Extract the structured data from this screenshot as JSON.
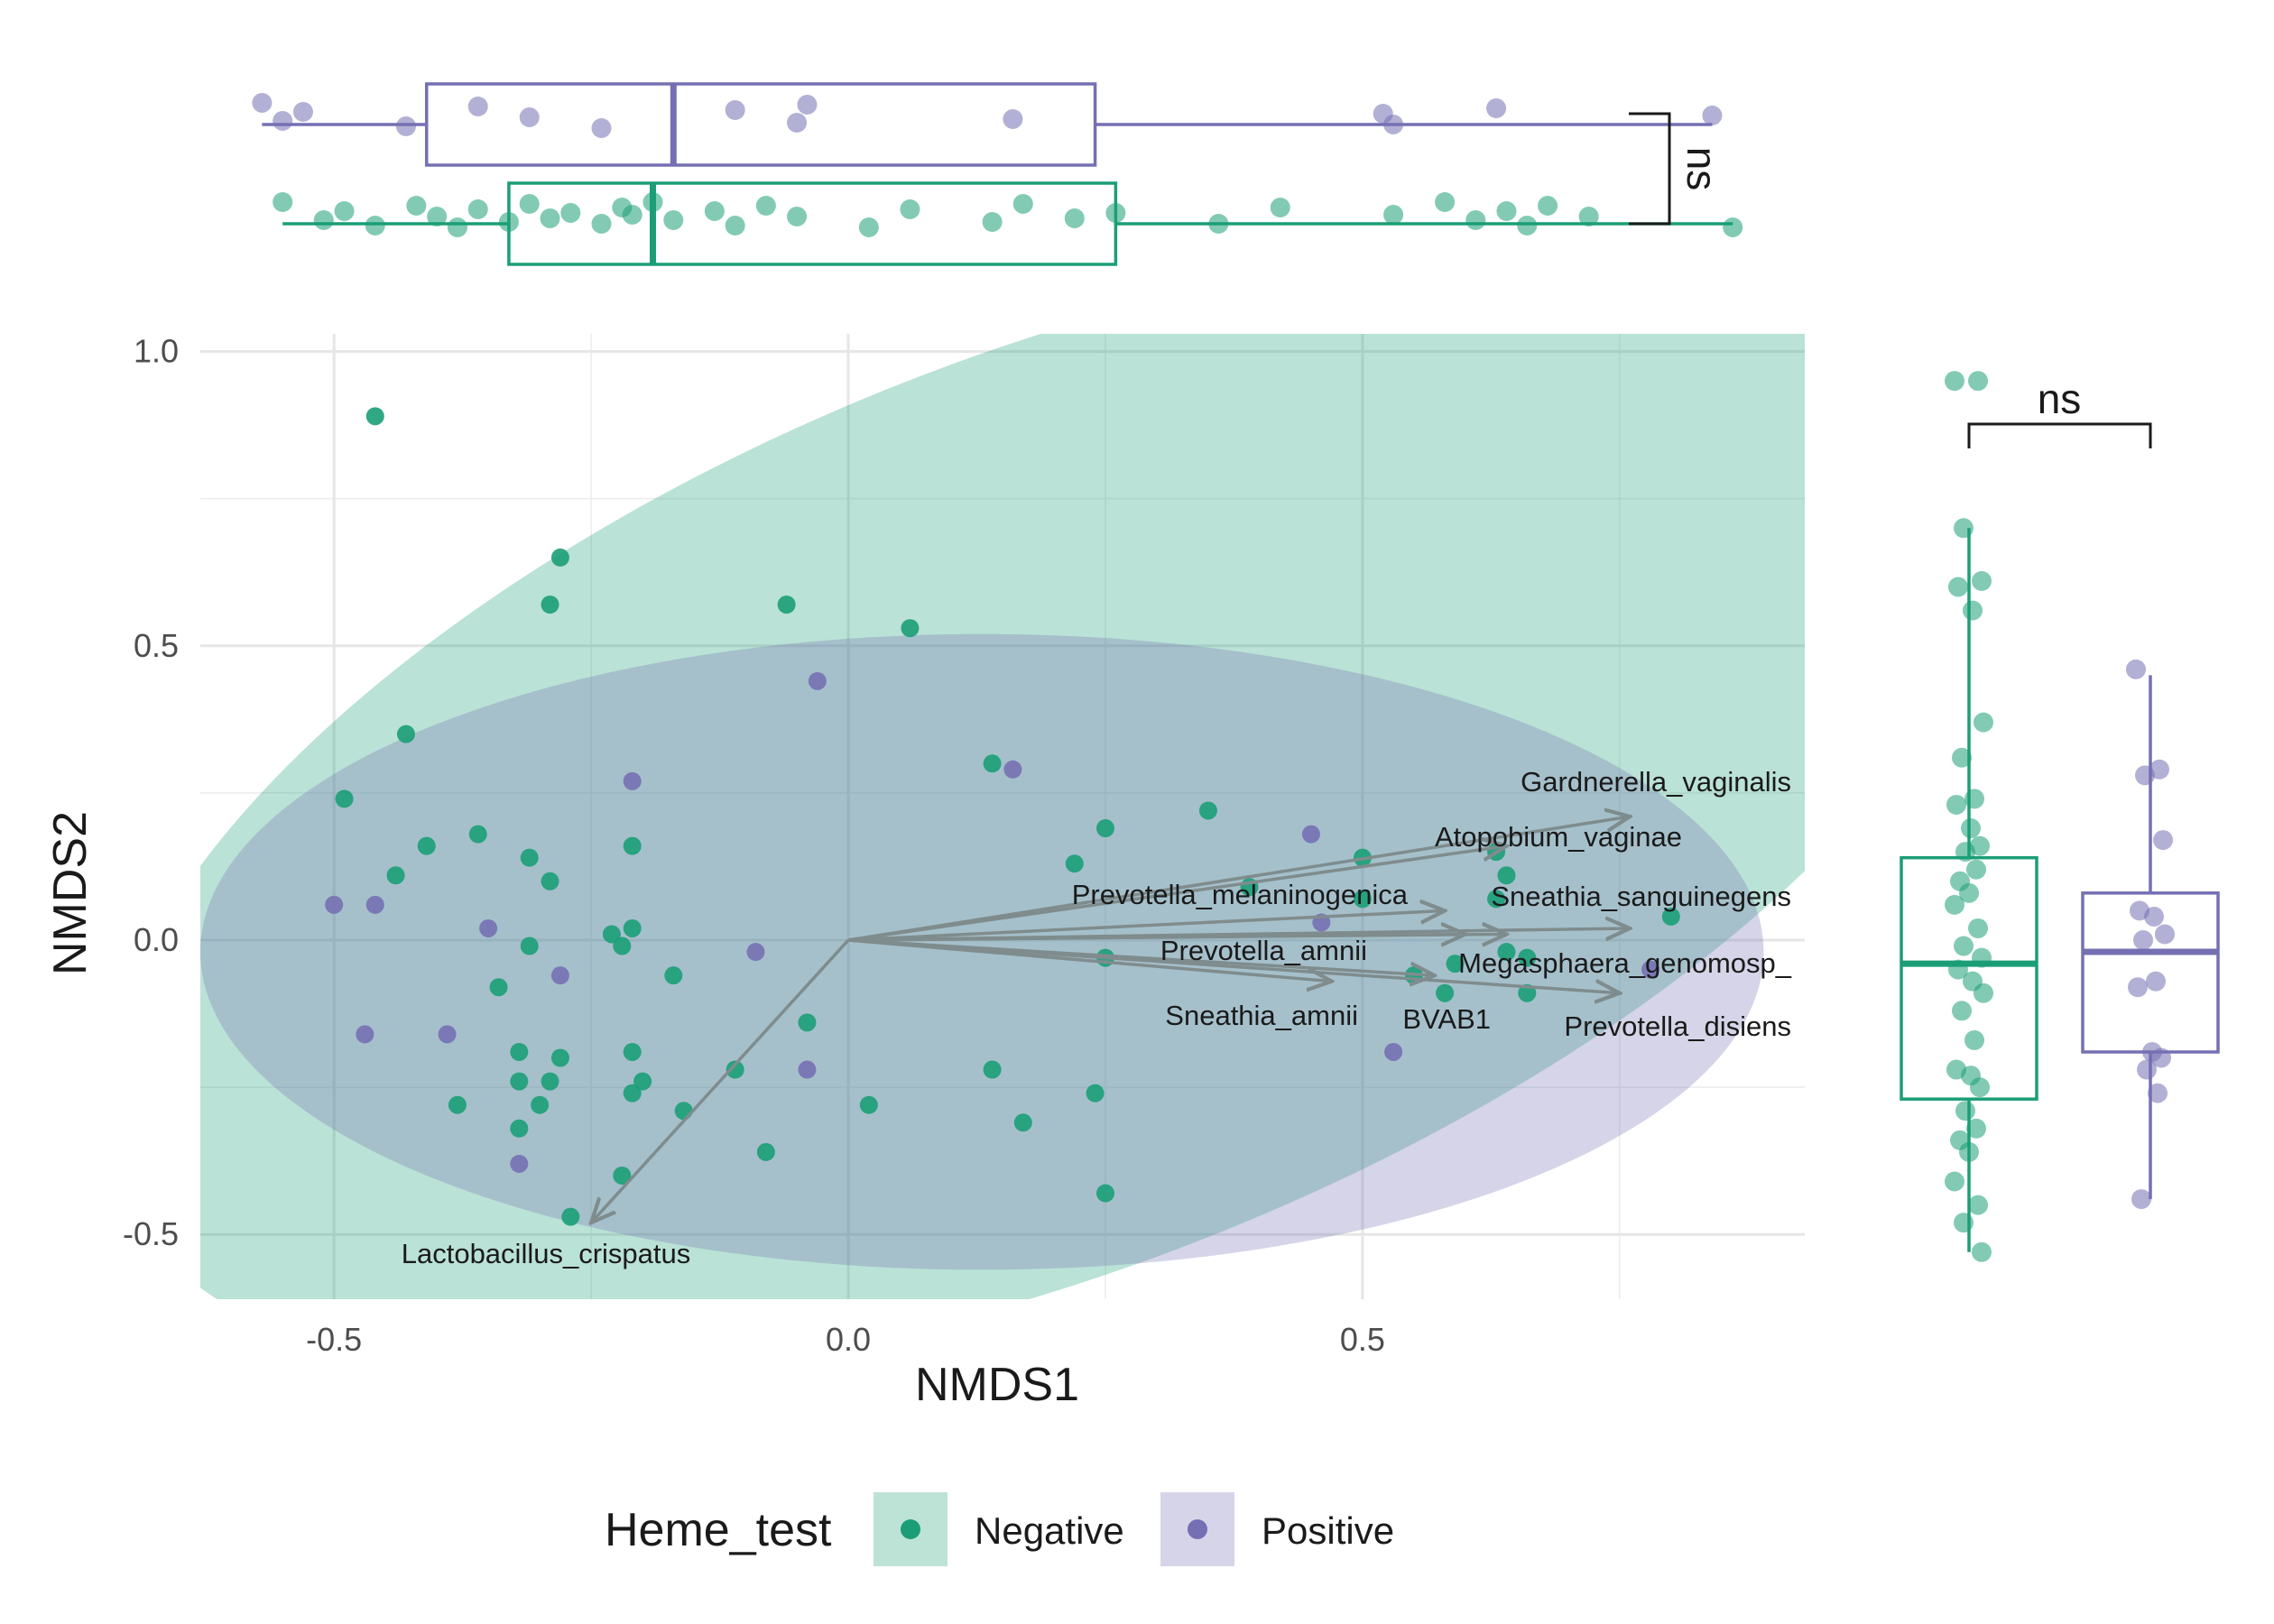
{
  "chart_data": {
    "type": "scatter",
    "subtype": "NMDS ordination with envfit vectors, 95% ellipses and marginal boxplots",
    "xlabel": "NMDS1",
    "ylabel": "NMDS2",
    "xlim": [
      -0.63,
      0.93
    ],
    "ylim": [
      -0.61,
      1.03
    ],
    "x_ticks": [
      -0.5,
      0.0,
      0.5
    ],
    "y_ticks": [
      -0.5,
      0.0,
      0.5,
      1.0
    ],
    "x_tick_labels": [
      "-0.5",
      "0.0",
      "0.5"
    ],
    "y_tick_labels": [
      "-0.5",
      "0.0",
      "0.5",
      "1.0"
    ],
    "grid": true,
    "legend": {
      "title": "Heme_test",
      "position": "bottom",
      "entries": [
        {
          "label": "Negative",
          "color": "#1b9e77"
        },
        {
          "label": "Positive",
          "color": "#7570b3"
        }
      ]
    },
    "series": [
      {
        "name": "Negative",
        "color": "#1b9e77",
        "points": [
          [
            -0.46,
            0.89
          ],
          [
            -0.28,
            0.65
          ],
          [
            -0.29,
            0.57
          ],
          [
            -0.06,
            0.57
          ],
          [
            0.06,
            0.53
          ],
          [
            -0.43,
            0.35
          ],
          [
            -0.49,
            0.24
          ],
          [
            -0.41,
            0.16
          ],
          [
            -0.36,
            0.18
          ],
          [
            -0.44,
            0.11
          ],
          [
            -0.31,
            0.14
          ],
          [
            -0.29,
            0.1
          ],
          [
            -0.21,
            0.16
          ],
          [
            -0.23,
            0.01
          ],
          [
            -0.21,
            0.02
          ],
          [
            -0.22,
            -0.01
          ],
          [
            -0.31,
            -0.01
          ],
          [
            -0.34,
            -0.08
          ],
          [
            -0.17,
            -0.06
          ],
          [
            -0.38,
            -0.28
          ],
          [
            -0.32,
            -0.19
          ],
          [
            -0.32,
            -0.24
          ],
          [
            -0.29,
            -0.24
          ],
          [
            -0.28,
            -0.2
          ],
          [
            -0.3,
            -0.28
          ],
          [
            -0.32,
            -0.32
          ],
          [
            -0.21,
            -0.19
          ],
          [
            -0.2,
            -0.24
          ],
          [
            -0.21,
            -0.26
          ],
          [
            -0.16,
            -0.29
          ],
          [
            -0.11,
            -0.22
          ],
          [
            -0.04,
            -0.14
          ],
          [
            0.02,
            -0.28
          ],
          [
            -0.08,
            -0.36
          ],
          [
            -0.22,
            -0.4
          ],
          [
            -0.27,
            -0.47
          ],
          [
            0.14,
            0.3
          ],
          [
            0.25,
            0.19
          ],
          [
            0.35,
            0.22
          ],
          [
            0.22,
            0.13
          ],
          [
            0.39,
            0.09
          ],
          [
            0.5,
            0.14
          ],
          [
            0.5,
            0.07
          ],
          [
            0.63,
            0.15
          ],
          [
            0.64,
            0.11
          ],
          [
            0.63,
            0.07
          ],
          [
            0.25,
            -0.03
          ],
          [
            0.55,
            -0.06
          ],
          [
            0.58,
            -0.09
          ],
          [
            0.59,
            -0.04
          ],
          [
            0.64,
            -0.02
          ],
          [
            0.66,
            -0.03
          ],
          [
            0.66,
            -0.09
          ],
          [
            0.8,
            0.04
          ],
          [
            0.14,
            -0.22
          ],
          [
            0.17,
            -0.31
          ],
          [
            0.24,
            -0.26
          ],
          [
            0.25,
            -0.43
          ]
        ]
      },
      {
        "name": "Positive",
        "color": "#7570b3",
        "points": [
          [
            -0.03,
            0.44
          ],
          [
            -0.21,
            0.27
          ],
          [
            0.16,
            0.29
          ],
          [
            0.45,
            0.18
          ],
          [
            -0.5,
            0.06
          ],
          [
            -0.46,
            0.06
          ],
          [
            -0.35,
            0.02
          ],
          [
            -0.28,
            -0.06
          ],
          [
            -0.09,
            -0.02
          ],
          [
            0.46,
            0.03
          ],
          [
            -0.47,
            -0.16
          ],
          [
            -0.39,
            -0.16
          ],
          [
            -0.04,
            -0.22
          ],
          [
            -0.32,
            -0.38
          ],
          [
            0.53,
            -0.19
          ],
          [
            0.78,
            -0.05
          ]
        ]
      }
    ],
    "ellipses": [
      {
        "name": "Negative",
        "color": "#1b9e77"
      },
      {
        "name": "Positive",
        "color": "#7570b3"
      }
    ],
    "vectors": [
      {
        "label": "Gardnerella_vaginalis",
        "x": 0.76,
        "y": 0.21
      },
      {
        "label": "Atopobium_vaginae",
        "x": 0.64,
        "y": 0.16
      },
      {
        "label": "Prevotella_melaninogenica",
        "x": 0.58,
        "y": 0.05
      },
      {
        "label": "Sneathia_sanguinegens",
        "x": 0.76,
        "y": 0.02
      },
      {
        "label": "Prevotella_amnii",
        "x": 0.6,
        "y": 0.01
      },
      {
        "label": "Megasphaera_genomosp_",
        "x": 0.64,
        "y": 0.01
      },
      {
        "label": "Sneathia_amnii",
        "x": 0.47,
        "y": -0.07
      },
      {
        "label": "BVAB1",
        "x": 0.57,
        "y": -0.06
      },
      {
        "label": "Prevotella_disiens",
        "x": 0.75,
        "y": -0.09
      },
      {
        "label": "Lactobacillus_crispatus",
        "x": -0.25,
        "y": -0.48
      }
    ],
    "marginal_top": {
      "variable": "NMDS1",
      "annotation": "ns",
      "boxes": [
        {
          "group": "Positive",
          "whisker_low": -0.57,
          "q1": -0.41,
          "median": -0.17,
          "q3": 0.24,
          "whisker_high": 0.84,
          "points": [
            -0.57,
            -0.55,
            -0.53,
            -0.43,
            -0.36,
            -0.31,
            -0.24,
            -0.11,
            -0.05,
            -0.04,
            0.16,
            0.52,
            0.53,
            0.63,
            0.84
          ]
        },
        {
          "group": "Negative",
          "whisker_low": -0.55,
          "q1": -0.33,
          "median": -0.19,
          "q3": 0.26,
          "whisker_high": 0.86,
          "points": [
            -0.55,
            -0.51,
            -0.49,
            -0.46,
            -0.42,
            -0.4,
            -0.38,
            -0.36,
            -0.33,
            -0.31,
            -0.29,
            -0.27,
            -0.24,
            -0.22,
            -0.21,
            -0.19,
            -0.17,
            -0.13,
            -0.11,
            -0.08,
            -0.05,
            0.02,
            0.06,
            0.14,
            0.17,
            0.22,
            0.26,
            0.36,
            0.42,
            0.53,
            0.58,
            0.61,
            0.64,
            0.66,
            0.68,
            0.72,
            0.86
          ]
        }
      ]
    },
    "marginal_right": {
      "variable": "NMDS2",
      "annotation": "ns",
      "boxes": [
        {
          "group": "Negative",
          "whisker_low": -0.53,
          "q1": -0.27,
          "median": -0.04,
          "q3": 0.14,
          "whisker_high": 0.7,
          "points": [
            0.95,
            0.95,
            0.7,
            0.61,
            0.6,
            0.56,
            0.37,
            0.31,
            0.24,
            0.23,
            0.19,
            0.16,
            0.15,
            0.12,
            0.1,
            0.08,
            0.06,
            0.02,
            -0.01,
            -0.03,
            -0.05,
            -0.07,
            -0.09,
            -0.12,
            -0.17,
            -0.22,
            -0.23,
            -0.25,
            -0.29,
            -0.32,
            -0.34,
            -0.36,
            -0.41,
            -0.45,
            -0.48,
            -0.53
          ]
        },
        {
          "group": "Positive",
          "whisker_low": -0.44,
          "q1": -0.19,
          "median": -0.02,
          "q3": 0.08,
          "whisker_high": 0.45,
          "points": [
            0.46,
            0.29,
            0.28,
            0.17,
            0.05,
            0.04,
            0.01,
            0.0,
            -0.07,
            -0.08,
            -0.19,
            -0.2,
            -0.22,
            -0.26,
            -0.44
          ]
        }
      ]
    }
  }
}
